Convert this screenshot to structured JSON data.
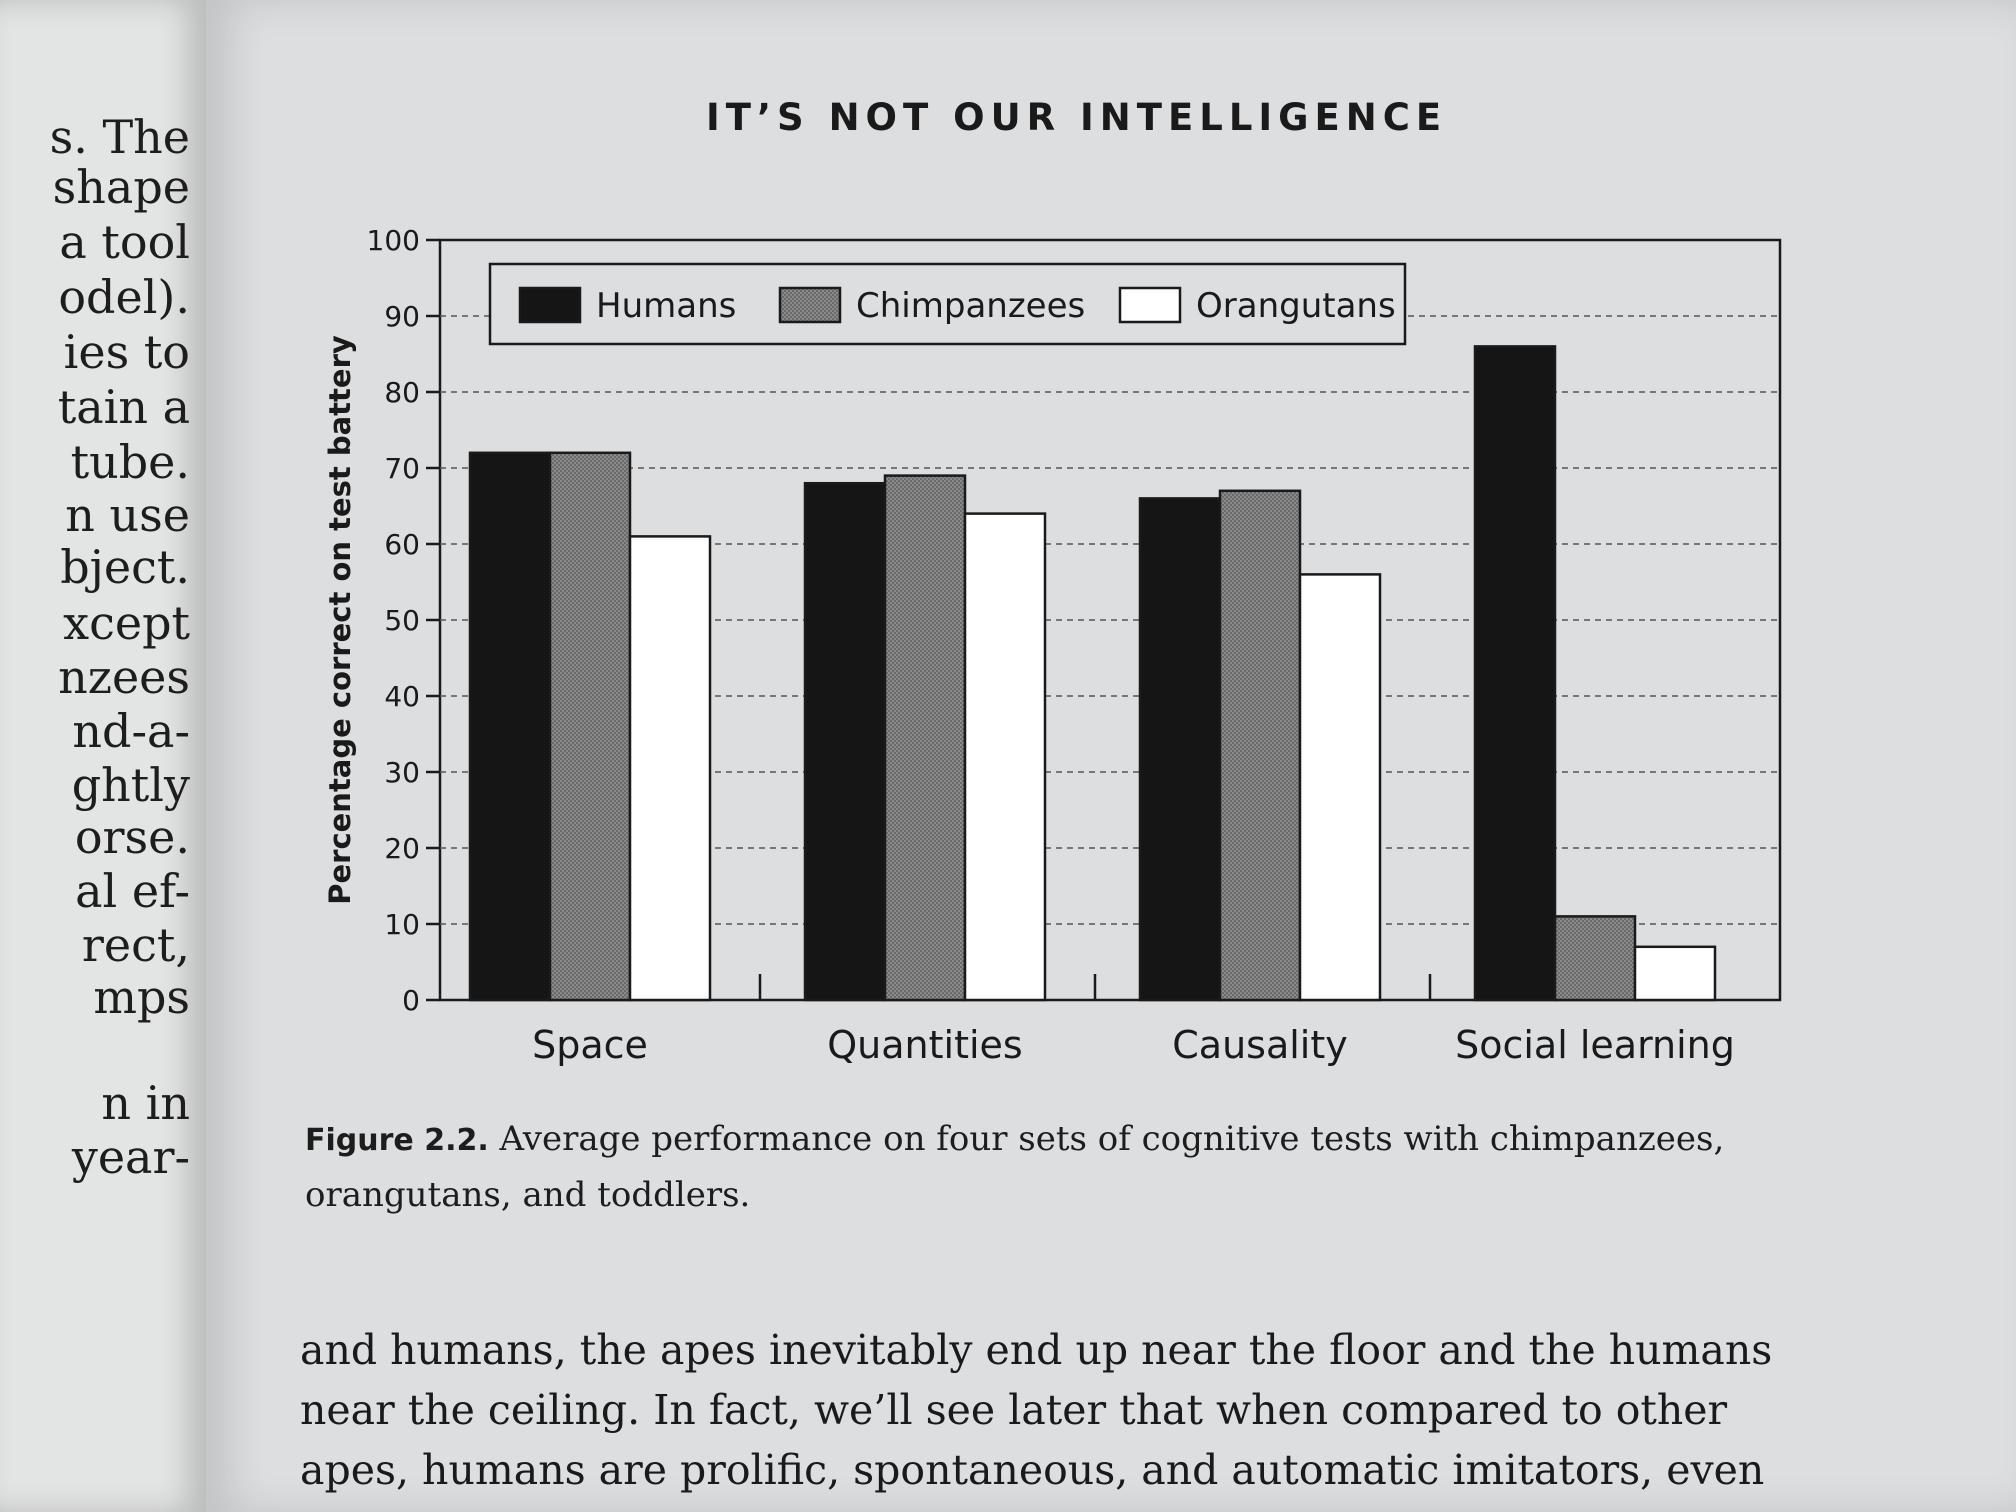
{
  "left_page": {
    "fragments": [
      "s. The",
      "shape",
      "a tool",
      "odel).",
      "ies to",
      "tain a",
      "tube.",
      "n use",
      "bject.",
      "xcept",
      "nzees",
      "nd-a-",
      "ghtly",
      "orse.",
      "al ef-",
      "rect,",
      "mps",
      "n in",
      "year-"
    ]
  },
  "running_head": "IT’S NOT OUR INTELLIGENCE",
  "chart_data": {
    "type": "bar",
    "categories": [
      "Space",
      "Quantities",
      "Causality",
      "Social learning"
    ],
    "series": [
      {
        "name": "Humans",
        "values": [
          72,
          68,
          66,
          86
        ],
        "color": "#151515"
      },
      {
        "name": "Chimpanzees",
        "values": [
          72,
          69,
          67,
          11
        ],
        "color": "#7f7f7f"
      },
      {
        "name": "Orangutans",
        "values": [
          61,
          64,
          56,
          7
        ],
        "color": "#ffffff"
      }
    ],
    "ylabel": "Percentage correct on test battery",
    "ylim": [
      0,
      100
    ],
    "yticks": [
      0,
      10,
      20,
      30,
      40,
      50,
      60,
      70,
      80,
      90,
      100
    ],
    "grid": true,
    "grid_style": "dashed",
    "legend_position": "top-left"
  },
  "caption": {
    "label": "Figure 2.2.",
    "text": " Average performance on four sets of cognitive tests with chimpanzees, orangutans, and toddlers."
  },
  "body_text": {
    "lines": [
      "and humans, the apes inevitably end up near the floor and the humans",
      "near the ceiling. In fact, we’ll see later that when compared to other",
      "apes, humans are prolific, spontaneous, and automatic imitators, even"
    ]
  }
}
